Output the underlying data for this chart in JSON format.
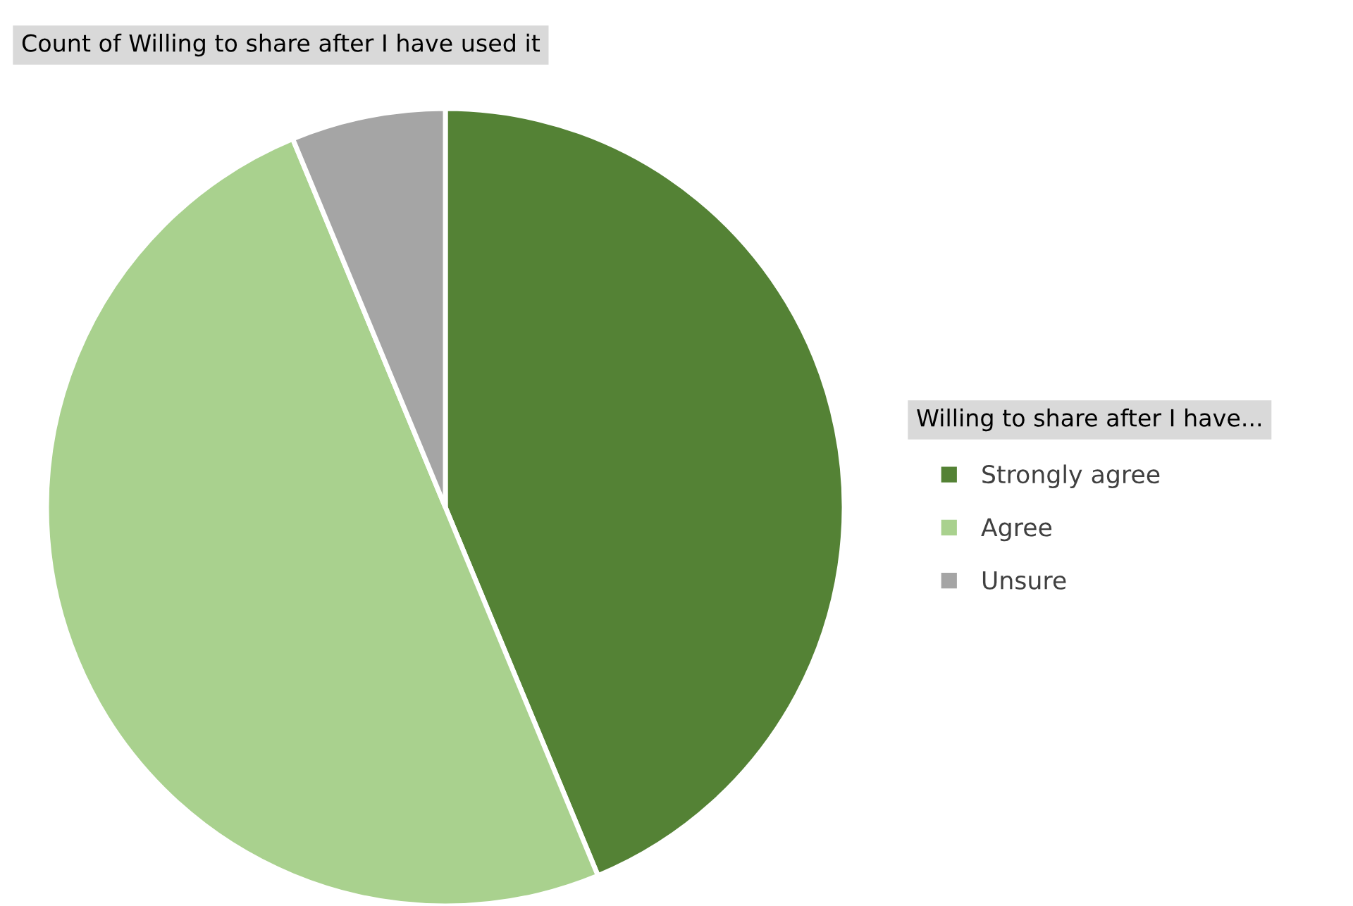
{
  "chart_data": {
    "type": "pie",
    "title": "Count of Willing to share after I have used it",
    "legend_title": "Willing to share after I have...",
    "categories": [
      "Strongly agree",
      "Agree",
      "Unsure"
    ],
    "values": [
      43.75,
      50,
      6.25
    ],
    "colors": [
      "#548235",
      "#a9d18e",
      "#a5a5a5"
    ],
    "legend": "right"
  }
}
